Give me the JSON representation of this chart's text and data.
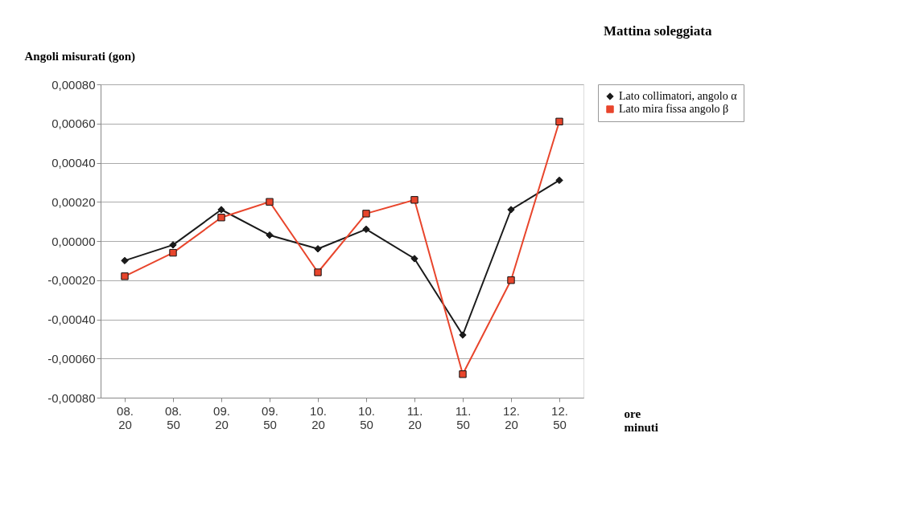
{
  "chart_data": {
    "type": "line",
    "title": "Mattina soleggiata",
    "ylabel": "Angoli misurati (gon)",
    "xlabel": "ore minuti",
    "categories": [
      "08.20",
      "08.50",
      "09.20",
      "09.50",
      "10.20",
      "10.50",
      "11.20",
      "11.50",
      "12.20",
      "12.50"
    ],
    "series": [
      {
        "name": "Lato collimatori, angolo α",
        "color": "#1a1a1a",
        "marker": "diamond",
        "values": [
          -0.0001,
          -2e-05,
          0.00016,
          3e-05,
          -4e-05,
          6e-05,
          -9e-05,
          -0.00048,
          0.00016,
          0.00031
        ]
      },
      {
        "name": "Lato mira fissa angolo β",
        "color": "#e8452c",
        "marker": "square",
        "values": [
          -0.00018,
          -6e-05,
          0.00012,
          0.0002,
          -0.00016,
          0.00014,
          0.00021,
          -0.00068,
          -0.0002,
          0.00061
        ]
      }
    ],
    "ylim": [
      -0.0008,
      0.0008
    ],
    "yticks": [
      {
        "value": -0.0008,
        "label": "-0,00080"
      },
      {
        "value": -0.0006,
        "label": "-0,00060"
      },
      {
        "value": -0.0004,
        "label": "-0,00040"
      },
      {
        "value": -0.0002,
        "label": "-0,00020"
      },
      {
        "value": 0,
        "label": "0,00000"
      },
      {
        "value": 0.0002,
        "label": "0,00020"
      },
      {
        "value": 0.0004,
        "label": "0,00040"
      },
      {
        "value": 0.0006,
        "label": "0,00060"
      },
      {
        "value": 0.0008,
        "label": "0,00080"
      }
    ],
    "grid": "y",
    "legend": "right",
    "line_style": "solid"
  }
}
